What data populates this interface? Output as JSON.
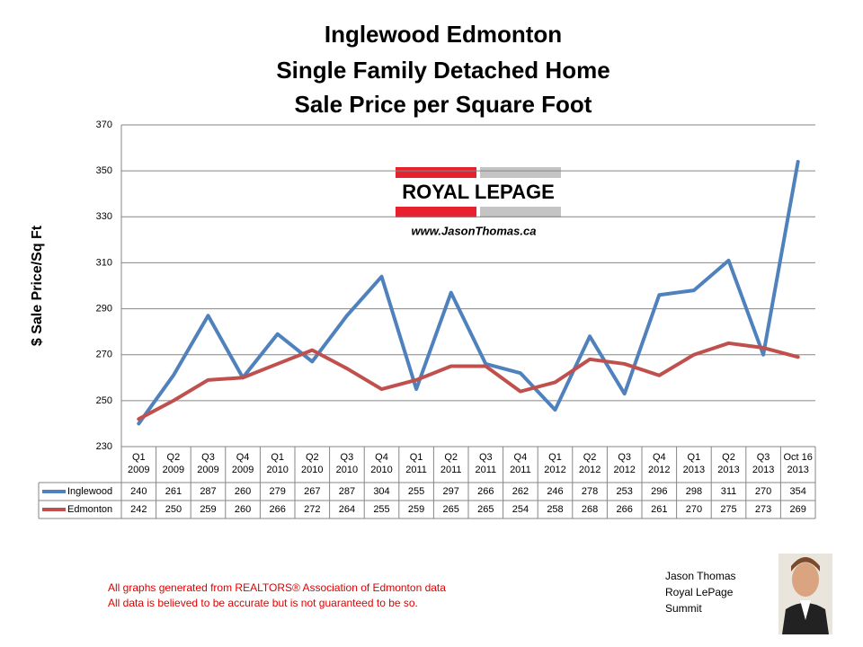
{
  "chart_data": {
    "type": "line",
    "title": [
      "Inglewood Edmonton",
      "Single Family Detached Home",
      "Sale Price per Square Foot"
    ],
    "y_label": "$ Sale Price/Sq Ft",
    "categories": [
      [
        "Q1",
        "2009"
      ],
      [
        "Q2",
        "2009"
      ],
      [
        "Q3",
        "2009"
      ],
      [
        "Q4",
        "2009"
      ],
      [
        "Q1",
        "2010"
      ],
      [
        "Q2",
        "2010"
      ],
      [
        "Q3",
        "2010"
      ],
      [
        "Q4",
        "2010"
      ],
      [
        "Q1",
        "2011"
      ],
      [
        "Q2",
        "2011"
      ],
      [
        "Q3",
        "2011"
      ],
      [
        "Q4",
        "2011"
      ],
      [
        "Q1",
        "2012"
      ],
      [
        "Q2",
        "2012"
      ],
      [
        "Q3",
        "2012"
      ],
      [
        "Q4",
        "2012"
      ],
      [
        "Q1",
        "2013"
      ],
      [
        "Q2",
        "2013"
      ],
      [
        "Q3",
        "2013"
      ],
      [
        "Oct 16",
        "2013"
      ]
    ],
    "series": [
      {
        "name": "Inglewood",
        "color": "#4f81bd",
        "values": [
          240,
          261,
          287,
          260,
          279,
          267,
          287,
          304,
          255,
          297,
          266,
          262,
          246,
          278,
          253,
          296,
          298,
          311,
          270,
          354
        ]
      },
      {
        "name": "Edmonton",
        "color": "#c0504d",
        "values": [
          242,
          250,
          259,
          260,
          266,
          272,
          264,
          255,
          259,
          265,
          265,
          254,
          258,
          268,
          266,
          261,
          270,
          275,
          273,
          269
        ]
      }
    ],
    "ylim": [
      230,
      370
    ],
    "yticks": [
      230,
      250,
      270,
      290,
      310,
      330,
      350,
      370
    ],
    "grid": true,
    "logo": {
      "brand": "ROYAL LEPAGE",
      "url": "www.JasonThomas.ca"
    },
    "notes": [
      "All graphs generated from REALTORS® Association of Edmonton data",
      "All data is believed to be accurate but is not guaranteed to be so."
    ],
    "agent": [
      "Jason Thomas",
      "Royal LePage",
      "Summit"
    ]
  }
}
